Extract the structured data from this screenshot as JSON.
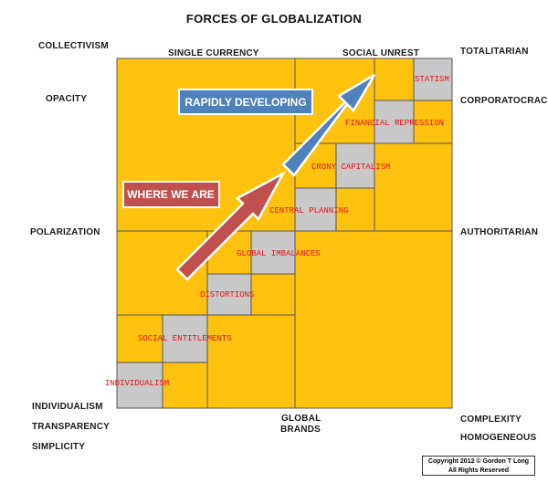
{
  "title": "FORCES OF GLOBALIZATION",
  "left_labels": {
    "collectivism": "COLLECTIVISM",
    "opacity": "OPACITY",
    "polarization": "POLARIZATION",
    "individualism": "INDIVIDUALISM",
    "transparency": "TRANSPARENCY",
    "simplicity": "SIMPLICITY"
  },
  "right_labels": {
    "totalitarian": "TOTALITARIAN",
    "corporatocracy": "CORPORATOCRACY",
    "authoritarian": "AUTHORITARIAN",
    "complexity": "COMPLEXITY",
    "homogeneous": "HOMOGENEOUS"
  },
  "top_labels": {
    "single_currency": "SINGLE CURRENCY",
    "social_unrest": "SOCIAL UNREST"
  },
  "bottom_labels": {
    "global": "GLOBAL",
    "brands": "BRANDS"
  },
  "stages": [
    "INDIVIDUALISM",
    "SOCIAL ENTITLEMENTS",
    "DISTORTIONS",
    "GLOBAL IMBALANCES",
    "CENTRAL PLANNING",
    "CRONY CAPITALISM",
    "FINANCIAL REPRESSION",
    "STATISM"
  ],
  "callouts": {
    "where_we_are": "WHERE WE ARE",
    "rapidly_developing": "RAPIDLY DEVELOPING"
  },
  "copyright": {
    "line1": "Copyright 2012 © Gordon T Long",
    "line2": "All Rights Reserved"
  },
  "colors": {
    "grid_fill": "#FFC20E",
    "gray_cell": "#C8C8C8",
    "stage_text": "#E8141C",
    "red_arrow": "#C0504D",
    "blue_arrow": "#4F81BD"
  }
}
